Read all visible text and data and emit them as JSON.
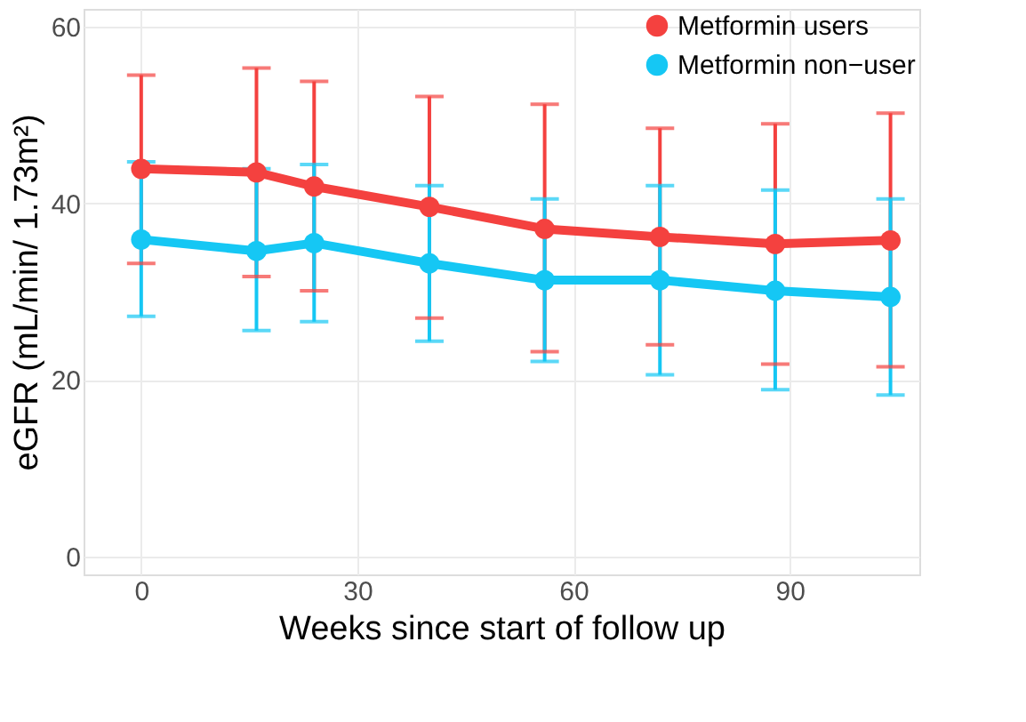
{
  "chart_data": {
    "type": "line",
    "xlabel": "Weeks since start of follow up",
    "ylabel": "eGFR (mL/min/ 1.73m²)",
    "x": [
      0,
      16,
      24,
      40,
      56,
      72,
      88,
      104
    ],
    "series": [
      {
        "name": "Metformin users",
        "color": "#f4413f",
        "values": [
          43.9,
          43.5,
          41.9,
          39.6,
          37.1,
          36.2,
          35.4,
          35.8
        ],
        "errors": [
          [
            33.2,
            54.5
          ],
          [
            31.7,
            55.3
          ],
          [
            30.1,
            53.8
          ],
          [
            27.0,
            52.1
          ],
          [
            23.2,
            51.2
          ],
          [
            24.0,
            48.5
          ],
          [
            21.8,
            49.0
          ],
          [
            21.5,
            50.2
          ]
        ]
      },
      {
        "name": "Metformin non−user",
        "color": "#15c7f4",
        "values": [
          35.9,
          34.6,
          35.5,
          33.2,
          31.3,
          31.3,
          30.1,
          29.4
        ],
        "errors": [
          [
            27.2,
            44.7
          ],
          [
            25.6,
            43.9
          ],
          [
            26.6,
            44.4
          ],
          [
            24.4,
            42.0
          ],
          [
            22.1,
            40.5
          ],
          [
            20.6,
            42.0
          ],
          [
            18.9,
            41.5
          ],
          [
            18.3,
            40.5
          ]
        ]
      }
    ],
    "xlim": [
      -8,
      108
    ],
    "xticks": [
      0,
      30,
      60,
      90
    ],
    "ylim": [
      -2,
      62
    ],
    "yticks": [
      0,
      20,
      40,
      60
    ],
    "grid": true,
    "legend": "top right",
    "marker": "circle",
    "line_style": "solid"
  }
}
